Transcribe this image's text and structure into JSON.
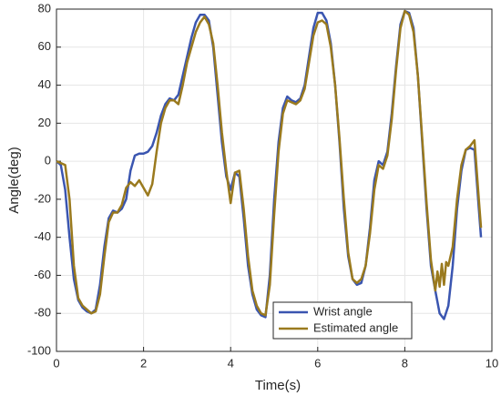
{
  "chart_data": {
    "type": "line",
    "xlabel": "Time(s)",
    "ylabel": "Angle(deg)",
    "xlim": [
      0,
      10
    ],
    "xticks": [
      0,
      2,
      4,
      6,
      8,
      10
    ],
    "ylim": [
      -100,
      80
    ],
    "yticks": [
      -100,
      -80,
      -60,
      -40,
      -20,
      0,
      20,
      40,
      60,
      80
    ],
    "grid": true,
    "legend": "lower right",
    "series": [
      {
        "name": "Wrist angle",
        "color": "#3a55b0",
        "x": [
          0,
          0.1,
          0.2,
          0.3,
          0.4,
          0.5,
          0.6,
          0.7,
          0.8,
          0.9,
          1.0,
          1.1,
          1.2,
          1.3,
          1.4,
          1.5,
          1.6,
          1.7,
          1.8,
          1.9,
          2.0,
          2.1,
          2.2,
          2.3,
          2.4,
          2.5,
          2.6,
          2.7,
          2.8,
          2.9,
          3.0,
          3.1,
          3.2,
          3.3,
          3.4,
          3.5,
          3.6,
          3.7,
          3.8,
          3.9,
          4.0,
          4.1,
          4.2,
          4.3,
          4.4,
          4.5,
          4.6,
          4.7,
          4.8,
          4.9,
          5.0,
          5.1,
          5.2,
          5.3,
          5.4,
          5.5,
          5.6,
          5.7,
          5.8,
          5.9,
          6.0,
          6.1,
          6.2,
          6.3,
          6.4,
          6.5,
          6.6,
          6.7,
          6.8,
          6.9,
          7.0,
          7.1,
          7.2,
          7.3,
          7.4,
          7.5,
          7.6,
          7.7,
          7.8,
          7.9,
          8.0,
          8.1,
          8.2,
          8.3,
          8.4,
          8.5,
          8.6,
          8.7,
          8.8,
          8.9,
          9.0,
          9.1,
          9.2,
          9.3,
          9.4,
          9.5,
          9.6,
          9.7,
          9.75
        ],
        "values": [
          0,
          -2,
          -15,
          -40,
          -62,
          -73,
          -77,
          -79,
          -80,
          -78,
          -65,
          -45,
          -30,
          -26,
          -27,
          -25,
          -20,
          -5,
          3,
          4,
          4,
          5,
          8,
          15,
          24,
          30,
          33,
          32,
          35,
          45,
          55,
          65,
          73,
          77,
          77,
          74,
          60,
          35,
          10,
          -8,
          -15,
          -6,
          -8,
          -30,
          -55,
          -70,
          -78,
          -81,
          -82,
          -60,
          -20,
          10,
          28,
          34,
          32,
          31,
          33,
          40,
          55,
          70,
          78,
          78,
          74,
          62,
          40,
          10,
          -25,
          -50,
          -62,
          -65,
          -64,
          -55,
          -35,
          -10,
          0,
          -2,
          5,
          25,
          50,
          72,
          79,
          78,
          70,
          45,
          10,
          -25,
          -55,
          -68,
          -80,
          -83,
          -76,
          -55,
          -25,
          -5,
          6,
          7,
          6,
          -25,
          -40
        ]
      },
      {
        "name": "Estimated angle",
        "color": "#9a7a1e",
        "x": [
          0,
          0.1,
          0.2,
          0.3,
          0.4,
          0.5,
          0.6,
          0.7,
          0.8,
          0.9,
          1.0,
          1.1,
          1.2,
          1.3,
          1.4,
          1.5,
          1.6,
          1.7,
          1.8,
          1.9,
          2.0,
          2.1,
          2.2,
          2.3,
          2.4,
          2.5,
          2.6,
          2.7,
          2.8,
          2.9,
          3.0,
          3.1,
          3.2,
          3.3,
          3.4,
          3.5,
          3.6,
          3.7,
          3.8,
          3.9,
          4.0,
          4.1,
          4.2,
          4.3,
          4.4,
          4.5,
          4.6,
          4.7,
          4.8,
          4.9,
          5.0,
          5.1,
          5.2,
          5.3,
          5.4,
          5.5,
          5.6,
          5.7,
          5.8,
          5.9,
          6.0,
          6.1,
          6.2,
          6.3,
          6.4,
          6.5,
          6.6,
          6.7,
          6.8,
          6.9,
          7.0,
          7.1,
          7.2,
          7.3,
          7.4,
          7.5,
          7.6,
          7.7,
          7.8,
          7.9,
          8.0,
          8.1,
          8.2,
          8.3,
          8.4,
          8.5,
          8.6,
          8.7,
          8.75,
          8.8,
          8.85,
          8.9,
          8.95,
          9.0,
          9.1,
          9.2,
          9.3,
          9.4,
          9.5,
          9.6,
          9.7,
          9.75
        ],
        "values": [
          0,
          -1,
          -2,
          -20,
          -55,
          -72,
          -76,
          -78,
          -80,
          -79,
          -70,
          -50,
          -32,
          -27,
          -27,
          -23,
          -14,
          -11,
          -13,
          -10,
          -14,
          -18,
          -12,
          5,
          20,
          28,
          32,
          32,
          30,
          40,
          52,
          60,
          68,
          73,
          76,
          72,
          62,
          40,
          15,
          -5,
          -22,
          -6,
          -5,
          -25,
          -50,
          -68,
          -76,
          -80,
          -81,
          -65,
          -28,
          5,
          25,
          32,
          31,
          30,
          32,
          38,
          52,
          66,
          73,
          74,
          72,
          60,
          40,
          12,
          -20,
          -48,
          -62,
          -64,
          -62,
          -55,
          -38,
          -15,
          -2,
          -4,
          3,
          22,
          48,
          70,
          79,
          77,
          68,
          45,
          12,
          -22,
          -52,
          -68,
          -58,
          -66,
          -54,
          -65,
          -53,
          -55,
          -45,
          -20,
          -2,
          6,
          8,
          11,
          -20,
          -35
        ]
      }
    ]
  }
}
